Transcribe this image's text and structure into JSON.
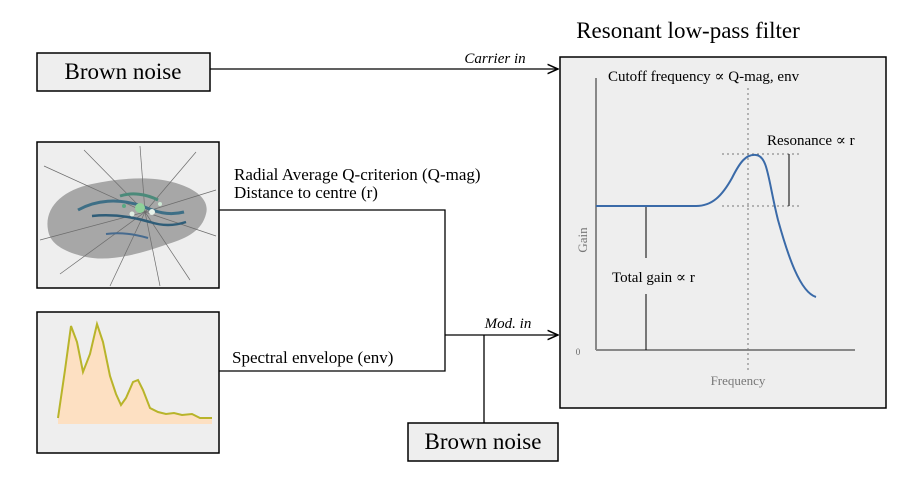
{
  "filter": {
    "title": "Resonant low-pass filter",
    "cutoff_label": "Cutoff frequency ∝ Q-mag, env",
    "resonance_label": "Resonance ∝ r",
    "total_gain_label": "Total gain ∝ r",
    "x_axis_label": "Frequency",
    "y_axis_label": "Gain",
    "origin_label": "0"
  },
  "inputs": {
    "brown_noise_top": "Brown noise",
    "brown_noise_bottom": "Brown noise",
    "carrier_label": "Carrier in",
    "mod_label": "Mod. in",
    "q_label": "Radial Average Q-criterion (Q-mag)",
    "r_label": "Distance to centre (r)",
    "env_label": "Spectral envelope (env)"
  },
  "colors": {
    "panel_bg": "#eeeeee",
    "curve": "#3a6aa8",
    "spectrum_line": "#b8b42a",
    "spectrum_fill": "#fde0c2",
    "blob": "#a7a7a7"
  }
}
